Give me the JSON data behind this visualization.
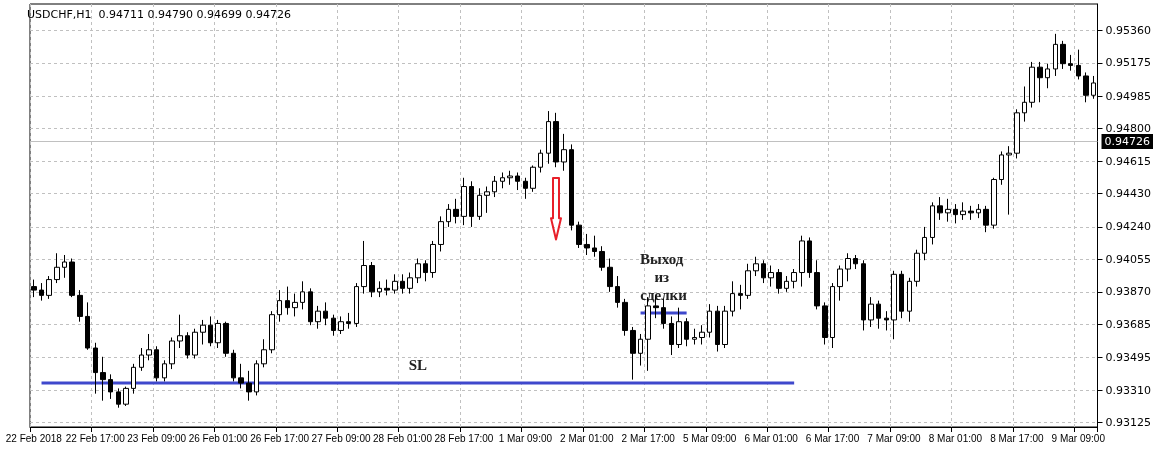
{
  "chart_data": {
    "type": "candlestick",
    "title": "USDCHF,H1  0.94711 0.94790 0.94699 0.94726",
    "categories": [
      "22 Feb 2018",
      null,
      null,
      null,
      null,
      null,
      null,
      null,
      "22 Feb 17:00",
      null,
      null,
      null,
      null,
      null,
      null,
      null,
      "23 Feb 09:00",
      null,
      null,
      null,
      null,
      null,
      null,
      null,
      "26 Feb 01:00",
      null,
      null,
      null,
      null,
      null,
      null,
      null,
      "26 Feb 17:00",
      null,
      null,
      null,
      null,
      null,
      null,
      null,
      "27 Feb 09:00",
      null,
      null,
      null,
      null,
      null,
      null,
      null,
      "28 Feb 01:00",
      null,
      null,
      null,
      null,
      null,
      null,
      null,
      "28 Feb 17:00",
      null,
      null,
      null,
      null,
      null,
      null,
      null,
      "1 Mar 09:00",
      null,
      null,
      null,
      null,
      null,
      null,
      null,
      "2 Mar 01:00",
      null,
      null,
      null,
      null,
      null,
      null,
      null,
      "2 Mar 17:00",
      null,
      null,
      null,
      null,
      null,
      null,
      null,
      "5 Mar 09:00",
      null,
      null,
      null,
      null,
      null,
      null,
      null,
      "6 Mar 01:00",
      null,
      null,
      null,
      null,
      null,
      null,
      null,
      "6 Mar 17:00",
      null,
      null,
      null,
      null,
      null,
      null,
      null,
      "7 Mar 09:00",
      null,
      null,
      null,
      null,
      null,
      null,
      null,
      "8 Mar 01:00",
      null,
      null,
      null,
      null,
      null,
      null,
      null,
      "8 Mar 17:00",
      null,
      null,
      null,
      null,
      null,
      null,
      null,
      "9 Mar 09:00",
      null,
      null
    ],
    "series": [
      {
        "type": "candlestick",
        "color": "#000000",
        "ohlc": [
          [
            0.939,
            0.9394,
            0.9384,
            0.9388
          ],
          [
            0.9388,
            0.9392,
            0.9382,
            0.9385
          ],
          [
            0.9385,
            0.9396,
            0.9383,
            0.9394
          ],
          [
            0.9394,
            0.9409,
            0.9392,
            0.9401
          ],
          [
            0.9401,
            0.9408,
            0.9395,
            0.9404
          ],
          [
            0.9404,
            0.9406,
            0.9384,
            0.9385
          ],
          [
            0.9385,
            0.9388,
            0.937,
            0.9373
          ],
          [
            0.9373,
            0.9381,
            0.9354,
            0.9355
          ],
          [
            0.9355,
            0.9358,
            0.9329,
            0.9341
          ],
          [
            0.9341,
            0.935,
            0.9325,
            0.9337
          ],
          [
            0.9337,
            0.934,
            0.9326,
            0.933
          ],
          [
            0.933,
            0.9332,
            0.9321,
            0.9323
          ],
          [
            0.9323,
            0.9333,
            0.9322,
            0.9332
          ],
          [
            0.9332,
            0.9346,
            0.9329,
            0.9344
          ],
          [
            0.9344,
            0.9355,
            0.9342,
            0.9351
          ],
          [
            0.9351,
            0.9363,
            0.9348,
            0.9354
          ],
          [
            0.9354,
            0.9356,
            0.9336,
            0.9338
          ],
          [
            0.9338,
            0.9348,
            0.9336,
            0.9346
          ],
          [
            0.9346,
            0.9361,
            0.9343,
            0.9359
          ],
          [
            0.9359,
            0.9374,
            0.9355,
            0.9362
          ],
          [
            0.9362,
            0.9364,
            0.9349,
            0.9351
          ],
          [
            0.9351,
            0.9366,
            0.9349,
            0.9364
          ],
          [
            0.9364,
            0.9371,
            0.9357,
            0.9368
          ],
          [
            0.9368,
            0.9373,
            0.9356,
            0.9358
          ],
          [
            0.9358,
            0.9371,
            0.9355,
            0.9369
          ],
          [
            0.9369,
            0.937,
            0.935,
            0.9352
          ],
          [
            0.9352,
            0.9354,
            0.9336,
            0.9338
          ],
          [
            0.9338,
            0.9346,
            0.9332,
            0.9335
          ],
          [
            0.9335,
            0.9342,
            0.9325,
            0.933
          ],
          [
            0.933,
            0.9348,
            0.9328,
            0.9346
          ],
          [
            0.9346,
            0.936,
            0.9344,
            0.9354
          ],
          [
            0.9354,
            0.9376,
            0.9352,
            0.9374
          ],
          [
            0.9374,
            0.9388,
            0.937,
            0.9382
          ],
          [
            0.9382,
            0.939,
            0.9374,
            0.9378
          ],
          [
            0.9378,
            0.9386,
            0.9373,
            0.9381
          ],
          [
            0.9381,
            0.9393,
            0.9377,
            0.9387
          ],
          [
            0.9387,
            0.9389,
            0.9368,
            0.937
          ],
          [
            0.937,
            0.9379,
            0.9366,
            0.9376
          ],
          [
            0.9376,
            0.9381,
            0.9368,
            0.9372
          ],
          [
            0.9372,
            0.9374,
            0.9362,
            0.9365
          ],
          [
            0.9365,
            0.9373,
            0.9363,
            0.937
          ],
          [
            0.937,
            0.9375,
            0.9366,
            0.9369
          ],
          [
            0.9369,
            0.9392,
            0.9367,
            0.939
          ],
          [
            0.939,
            0.9416,
            0.9386,
            0.9402
          ],
          [
            0.9402,
            0.9404,
            0.9384,
            0.9387
          ],
          [
            0.9387,
            0.9393,
            0.9384,
            0.9389
          ],
          [
            0.9389,
            0.9394,
            0.9385,
            0.9388
          ],
          [
            0.9388,
            0.9397,
            0.9386,
            0.9393
          ],
          [
            0.9393,
            0.9397,
            0.9386,
            0.9389
          ],
          [
            0.9389,
            0.9398,
            0.9386,
            0.9395
          ],
          [
            0.9395,
            0.9406,
            0.9392,
            0.9403
          ],
          [
            0.9403,
            0.9405,
            0.9393,
            0.9398
          ],
          [
            0.9398,
            0.9416,
            0.9395,
            0.9414
          ],
          [
            0.9414,
            0.943,
            0.941,
            0.9427
          ],
          [
            0.9427,
            0.9437,
            0.9424,
            0.9434
          ],
          [
            0.9434,
            0.944,
            0.9426,
            0.943
          ],
          [
            0.943,
            0.9452,
            0.9425,
            0.9447
          ],
          [
            0.9447,
            0.945,
            0.9424,
            0.943
          ],
          [
            0.943,
            0.9446,
            0.9428,
            0.9442
          ],
          [
            0.9442,
            0.9447,
            0.9432,
            0.9444
          ],
          [
            0.9444,
            0.9453,
            0.9441,
            0.945
          ],
          [
            0.945,
            0.9455,
            0.9446,
            0.9452
          ],
          [
            0.9452,
            0.9456,
            0.9448,
            0.9453
          ],
          [
            0.9453,
            0.9455,
            0.9445,
            0.945
          ],
          [
            0.945,
            0.9452,
            0.944,
            0.9446
          ],
          [
            0.9446,
            0.9459,
            0.9444,
            0.9458
          ],
          [
            0.9458,
            0.9468,
            0.9455,
            0.9466
          ],
          [
            0.9466,
            0.949,
            0.946,
            0.9484
          ],
          [
            0.9484,
            0.9489,
            0.9458,
            0.9461
          ],
          [
            0.9461,
            0.9477,
            0.9456,
            0.9468
          ],
          [
            0.9468,
            0.9471,
            0.9422,
            0.9425
          ],
          [
            0.9425,
            0.9427,
            0.9412,
            0.9414
          ],
          [
            0.9414,
            0.942,
            0.9408,
            0.9412
          ],
          [
            0.9412,
            0.9419,
            0.9407,
            0.941
          ],
          [
            0.941,
            0.9413,
            0.9399,
            0.9401
          ],
          [
            0.9401,
            0.9406,
            0.9387,
            0.939
          ],
          [
            0.939,
            0.9396,
            0.9378,
            0.9381
          ],
          [
            0.9381,
            0.9383,
            0.9362,
            0.9365
          ],
          [
            0.9365,
            0.9367,
            0.9337,
            0.9352
          ],
          [
            0.9352,
            0.9363,
            0.9345,
            0.936
          ],
          [
            0.936,
            0.9384,
            0.9342,
            0.9379
          ],
          [
            0.9379,
            0.9385,
            0.9372,
            0.9378
          ],
          [
            0.9378,
            0.9383,
            0.9366,
            0.9369
          ],
          [
            0.9369,
            0.9373,
            0.9351,
            0.9357
          ],
          [
            0.9357,
            0.9378,
            0.9355,
            0.937
          ],
          [
            0.937,
            0.9372,
            0.9356,
            0.936
          ],
          [
            0.936,
            0.9366,
            0.9357,
            0.9361
          ],
          [
            0.9361,
            0.9368,
            0.9357,
            0.9364
          ],
          [
            0.9364,
            0.938,
            0.9361,
            0.9376
          ],
          [
            0.9376,
            0.9379,
            0.9353,
            0.9357
          ],
          [
            0.9357,
            0.9379,
            0.9355,
            0.9376
          ],
          [
            0.9376,
            0.9393,
            0.9373,
            0.9386
          ],
          [
            0.9386,
            0.9391,
            0.9377,
            0.9385
          ],
          [
            0.9385,
            0.9403,
            0.9383,
            0.9399
          ],
          [
            0.9399,
            0.9407,
            0.9396,
            0.9403
          ],
          [
            0.9403,
            0.9405,
            0.9392,
            0.9395
          ],
          [
            0.9395,
            0.9402,
            0.939,
            0.9398
          ],
          [
            0.9398,
            0.94,
            0.9386,
            0.9389
          ],
          [
            0.9389,
            0.9396,
            0.9387,
            0.9393
          ],
          [
            0.9393,
            0.94,
            0.9389,
            0.9398
          ],
          [
            0.9398,
            0.9419,
            0.939,
            0.9416
          ],
          [
            0.9416,
            0.9418,
            0.9395,
            0.9398
          ],
          [
            0.9398,
            0.9405,
            0.9377,
            0.9379
          ],
          [
            0.9379,
            0.9381,
            0.9357,
            0.9361
          ],
          [
            0.9361,
            0.9392,
            0.9355,
            0.939
          ],
          [
            0.939,
            0.9402,
            0.9382,
            0.94
          ],
          [
            0.94,
            0.9409,
            0.9393,
            0.9406
          ],
          [
            0.9406,
            0.9408,
            0.94,
            0.9403
          ],
          [
            0.9403,
            0.9405,
            0.9365,
            0.9371
          ],
          [
            0.9371,
            0.9384,
            0.9367,
            0.938
          ],
          [
            0.938,
            0.9382,
            0.9366,
            0.9372
          ],
          [
            0.9372,
            0.9376,
            0.9365,
            0.9371
          ],
          [
            0.9371,
            0.9399,
            0.936,
            0.9397
          ],
          [
            0.9397,
            0.9399,
            0.9372,
            0.9376
          ],
          [
            0.9376,
            0.9395,
            0.937,
            0.9393
          ],
          [
            0.9393,
            0.9411,
            0.939,
            0.9409
          ],
          [
            0.9409,
            0.9424,
            0.9405,
            0.9418
          ],
          [
            0.9418,
            0.9438,
            0.9414,
            0.9436
          ],
          [
            0.9436,
            0.9441,
            0.9428,
            0.9432
          ],
          [
            0.9432,
            0.944,
            0.9427,
            0.9434
          ],
          [
            0.9434,
            0.9437,
            0.9426,
            0.9431
          ],
          [
            0.9431,
            0.9438,
            0.9428,
            0.9433
          ],
          [
            0.9433,
            0.9436,
            0.9428,
            0.9432
          ],
          [
            0.9432,
            0.9437,
            0.9429,
            0.9434
          ],
          [
            0.9434,
            0.9436,
            0.9421,
            0.9425
          ],
          [
            0.9425,
            0.9452,
            0.9423,
            0.9451
          ],
          [
            0.9451,
            0.9467,
            0.9448,
            0.9465
          ],
          [
            0.9465,
            0.947,
            0.9431,
            0.9466
          ],
          [
            0.9466,
            0.9491,
            0.9463,
            0.9489
          ],
          [
            0.9489,
            0.9504,
            0.9484,
            0.9495
          ],
          [
            0.9495,
            0.9518,
            0.9492,
            0.9515
          ],
          [
            0.9515,
            0.9518,
            0.9495,
            0.9509
          ],
          [
            0.9509,
            0.9517,
            0.9503,
            0.9514
          ],
          [
            0.9514,
            0.9534,
            0.951,
            0.9528
          ],
          [
            0.9528,
            0.953,
            0.9514,
            0.9517
          ],
          [
            0.9517,
            0.9522,
            0.9513,
            0.9516
          ],
          [
            0.9516,
            0.9525,
            0.9508,
            0.951
          ],
          [
            0.951,
            0.9512,
            0.9495,
            0.9499
          ],
          [
            0.9499,
            0.951,
            0.9497,
            0.9506
          ]
        ]
      },
      {
        "type": "line",
        "name": "SL",
        "color": "#3f48cc",
        "values": [
          null,
          0.9335,
          0.9335,
          0.9335,
          0.9335,
          0.9335,
          0.9335,
          0.9335,
          0.9335,
          0.9335,
          0.9335,
          0.9335,
          0.9335,
          0.9335,
          0.9335,
          0.9335,
          0.9335,
          0.9335,
          0.9335,
          0.9335,
          0.9335,
          0.9335,
          0.9335,
          0.9335,
          0.9335,
          0.9335,
          0.9335,
          0.9335,
          0.9335,
          0.9335,
          0.9335,
          0.9335,
          0.9335,
          0.9335,
          0.9335,
          0.9335,
          0.9335,
          0.9335,
          0.9335,
          0.9335,
          0.9335,
          0.9335,
          0.9335,
          0.9335,
          0.9335,
          0.9335,
          0.9335,
          0.9335,
          0.9335,
          0.9335,
          0.9335,
          0.9335,
          0.9335,
          0.9335,
          0.9335,
          0.9335,
          0.9335,
          0.9335,
          0.9335,
          0.9335,
          0.9335,
          0.9335,
          0.9335,
          0.9335,
          0.9335,
          0.9335,
          0.9335,
          0.9335,
          0.9335,
          0.9335,
          0.9335,
          0.9335,
          0.9335,
          0.9335,
          0.9335,
          0.9335,
          0.9335,
          0.9335,
          0.9335,
          0.9335,
          0.9335,
          0.9335,
          0.9335,
          0.9335,
          0.9335,
          0.9335,
          0.9335,
          0.9335,
          0.9335,
          0.9335,
          0.9335,
          0.9335,
          0.9335,
          0.9335,
          0.9335,
          0.9335,
          0.9335,
          0.9335,
          0.9335,
          0.9335,
          null,
          null,
          null,
          null,
          null,
          null,
          null,
          null,
          null,
          null,
          null,
          null,
          null,
          null,
          null,
          null,
          null,
          null,
          null,
          null,
          null,
          null,
          null,
          null,
          null,
          null,
          null,
          null,
          null,
          null,
          null,
          null,
          null,
          null,
          null,
          null,
          null,
          null,
          null
        ]
      },
      {
        "type": "line",
        "name": "Выход из сделки",
        "color": "#3f48cc",
        "values": [
          null,
          null,
          null,
          null,
          null,
          null,
          null,
          null,
          null,
          null,
          null,
          null,
          null,
          null,
          null,
          null,
          null,
          null,
          null,
          null,
          null,
          null,
          null,
          null,
          null,
          null,
          null,
          null,
          null,
          null,
          null,
          null,
          null,
          null,
          null,
          null,
          null,
          null,
          null,
          null,
          null,
          null,
          null,
          null,
          null,
          null,
          null,
          null,
          null,
          null,
          null,
          null,
          null,
          null,
          null,
          null,
          null,
          null,
          null,
          null,
          null,
          null,
          null,
          null,
          null,
          null,
          null,
          null,
          null,
          null,
          null,
          null,
          null,
          null,
          null,
          null,
          null,
          null,
          null,
          0.9375,
          0.9375,
          0.9375,
          0.9375,
          0.9375,
          0.9375,
          0.9375,
          null,
          null,
          null,
          null,
          null,
          null,
          null,
          null,
          null,
          null,
          null,
          null,
          null,
          null,
          null,
          null,
          null,
          null,
          null,
          null,
          null,
          null,
          null,
          null,
          null,
          null,
          null,
          null,
          null,
          null,
          null,
          null,
          null,
          null,
          null,
          null,
          null,
          null,
          null,
          null,
          null,
          null,
          null,
          null,
          null,
          null,
          null,
          null,
          null,
          null,
          null,
          null,
          null
        ]
      }
    ],
    "ylim": [
      0.931,
      0.9551
    ],
    "yticks": [
      {
        "value": 0.93125,
        "label": "0.93125"
      },
      {
        "value": 0.9331,
        "label": "0.93310"
      },
      {
        "value": 0.93495,
        "label": "0.93495"
      },
      {
        "value": 0.93685,
        "label": "0.93685"
      },
      {
        "value": 0.9387,
        "label": "0.93870"
      },
      {
        "value": 0.94055,
        "label": "0.94055"
      },
      {
        "value": 0.9424,
        "label": "0.94240"
      },
      {
        "value": 0.9443,
        "label": "0.94430"
      },
      {
        "value": 0.94615,
        "label": "0.94615"
      },
      {
        "value": 0.948,
        "label": "0.94800"
      },
      {
        "value": 0.94985,
        "label": "0.94985"
      },
      {
        "value": 0.95175,
        "label": "0.95175"
      },
      {
        "value": 0.9536,
        "label": "0.95360"
      }
    ],
    "ref_lines": [
      {
        "axis": "y",
        "value": 0.94726,
        "label": "0.94726",
        "color": "#c0c0c0"
      }
    ],
    "grid": true,
    "legend": false
  }
}
